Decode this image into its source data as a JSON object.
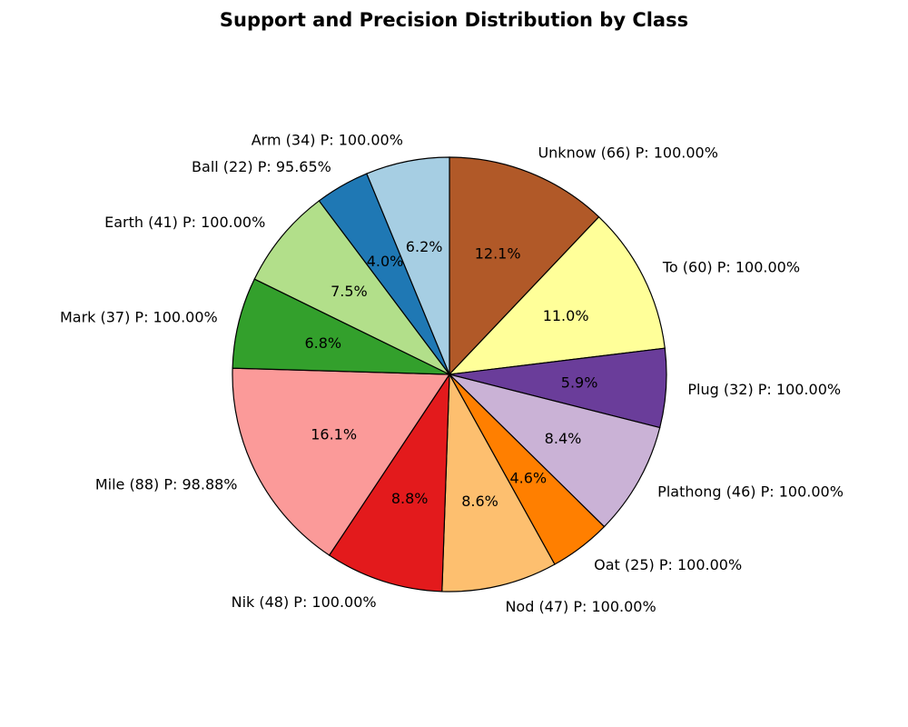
{
  "chart_data": {
    "type": "pie",
    "title": "Support and Precision Distribution by Class",
    "start_angle_deg": 90,
    "direction": "clockwise",
    "slices": [
      {
        "label": "Unknow (66) P: 100.00%",
        "value": 66,
        "percent_label": "12.1%",
        "color": "#b15928"
      },
      {
        "label": "To (60) P: 100.00%",
        "value": 60,
        "percent_label": "11.0%",
        "color": "#ffff99"
      },
      {
        "label": "Plug (32) P: 100.00%",
        "value": 32,
        "percent_label": "5.9%",
        "color": "#6a3d9a"
      },
      {
        "label": "Plathong (46) P: 100.00%",
        "value": 46,
        "percent_label": "8.4%",
        "color": "#cab2d6"
      },
      {
        "label": "Oat (25) P: 100.00%",
        "value": 25,
        "percent_label": "4.6%",
        "color": "#ff7f00"
      },
      {
        "label": "Nod (47) P: 100.00%",
        "value": 47,
        "percent_label": "8.6%",
        "color": "#fdbf6f"
      },
      {
        "label": "Nik (48) P: 100.00%",
        "value": 48,
        "percent_label": "8.8%",
        "color": "#e31a1c"
      },
      {
        "label": "Mile (88) P: 98.88%",
        "value": 88,
        "percent_label": "16.1%",
        "color": "#fb9a99"
      },
      {
        "label": "Mark (37) P: 100.00%",
        "value": 37,
        "percent_label": "6.8%",
        "color": "#33a02c"
      },
      {
        "label": "Earth (41) P: 100.00%",
        "value": 41,
        "percent_label": "7.5%",
        "color": "#b2df8a"
      },
      {
        "label": "Ball (22) P: 95.65%",
        "value": 22,
        "percent_label": "4.0%",
        "color": "#1f78b4"
      },
      {
        "label": "Arm (34) P: 100.00%",
        "value": 34,
        "percent_label": "6.2%",
        "color": "#a6cee3"
      }
    ]
  }
}
